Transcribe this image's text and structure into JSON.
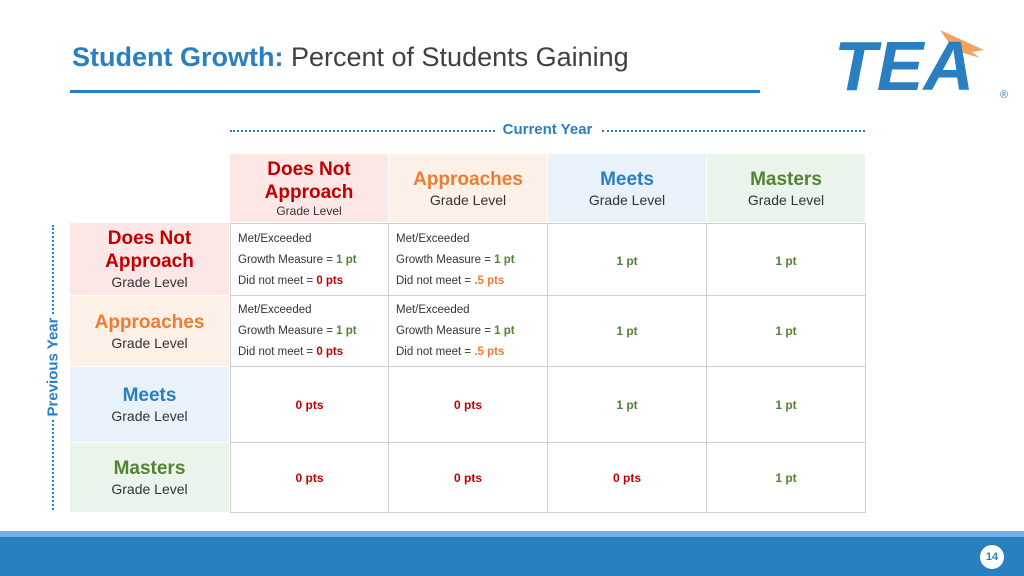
{
  "title": {
    "bold": "Student Growth:",
    "rest": " Percent of Students Gaining"
  },
  "logo": {
    "text": "TEA",
    "mark": "®"
  },
  "axes": {
    "current_year": "Current Year",
    "previous_year": "Previous Year"
  },
  "columns": [
    {
      "title": "Does Not Approach",
      "sub": "Grade Level"
    },
    {
      "title": "Approaches",
      "sub": "Grade Level"
    },
    {
      "title": "Meets",
      "sub": "Grade Level"
    },
    {
      "title": "Masters",
      "sub": "Grade Level"
    }
  ],
  "rows": [
    {
      "title": "Does Not Approach",
      "sub": "Grade Level"
    },
    {
      "title": "Approaches",
      "sub": "Grade Level"
    },
    {
      "title": "Meets",
      "sub": "Grade Level"
    },
    {
      "title": "Masters",
      "sub": "Grade Level"
    }
  ],
  "rules": {
    "r1c1": {
      "l1": "Met/Exceeded",
      "l2": "Growth Measure  = ",
      "v2": "1 pt",
      "l3": "Did not meet       = ",
      "v3": "0 pts"
    },
    "r1c2": {
      "l1": "Met/Exceeded",
      "l2": "Growth Measure = ",
      "v2": "1 pt",
      "l3": "Did not meet       = ",
      "v3": ".5 pts"
    },
    "r2c1": {
      "l1": "Met/Exceeded",
      "l2": "Growth Measure = ",
      "v2": "1 pt",
      "l3": "Did not meet       = ",
      "v3": "0 pts"
    },
    "r2c2": {
      "l1": "Met/Exceeded",
      "l2": "Growth Measure = ",
      "v2": "1 pt",
      "l3": "Did not meet       = ",
      "v3": ".5 pts"
    }
  },
  "points": {
    "r1c3": "1 pt",
    "r1c4": "1 pt",
    "r2c3": "1 pt",
    "r2c4": "1 pt",
    "r3c1": "0 pts",
    "r3c2": "0 pts",
    "r3c3": "1 pt",
    "r3c4": "1 pt",
    "r4c1": "0 pts",
    "r4c2": "0 pts",
    "r4c3": "0 pts",
    "r4c4": "1 pt"
  },
  "page_number": "14",
  "colors": {
    "accent": "#2a7fc1",
    "red": "#c00000",
    "orange": "#ed7d31",
    "green": "#548235"
  }
}
